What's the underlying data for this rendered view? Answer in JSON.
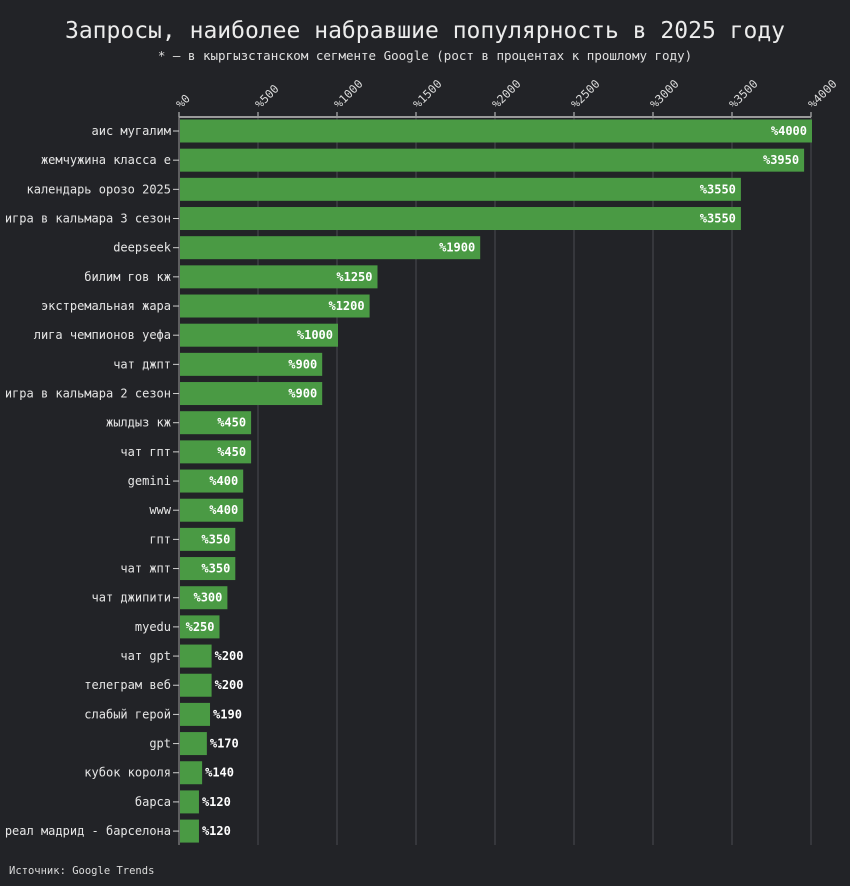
{
  "chart_data": {
    "type": "bar",
    "orientation": "horizontal",
    "title": "Запросы, наиболее набравшие популярность в 2025 году",
    "subtitle": "* — в кыргызстанском сегменте Google (рост в процентах к прошлому году)",
    "source": "Источник: Google Trends",
    "xlim": [
      0,
      4000
    ],
    "xticks": [
      0,
      500,
      1000,
      1500,
      2000,
      2500,
      3000,
      3500,
      4000
    ],
    "tick_prefix": "%",
    "grid": true,
    "bar_color": "#4a9a44",
    "background": "#222327",
    "categories": [
      "аис мугалим",
      "жемчужина класса е",
      "календарь орозо 2025",
      "игра в кальмара 3 сезон",
      "deepseek",
      "билим гов кж",
      "экстремальная жара",
      "лига чемпионов уефа",
      "чат джпт",
      "игра в кальмара 2 сезон",
      "жылдыз кж",
      "чат гпт",
      "gemini",
      "www",
      "гпт",
      "чат жпт",
      "чат джипити",
      "myedu",
      "чат gpt",
      "телеграм веб",
      "слабый герой",
      "gpt",
      "кубок короля",
      "барса",
      "реал мадрид - барселона"
    ],
    "values": [
      4000,
      3950,
      3550,
      3550,
      1900,
      1250,
      1200,
      1000,
      900,
      900,
      450,
      450,
      400,
      400,
      350,
      350,
      300,
      250,
      200,
      200,
      190,
      170,
      140,
      120,
      120
    ]
  }
}
